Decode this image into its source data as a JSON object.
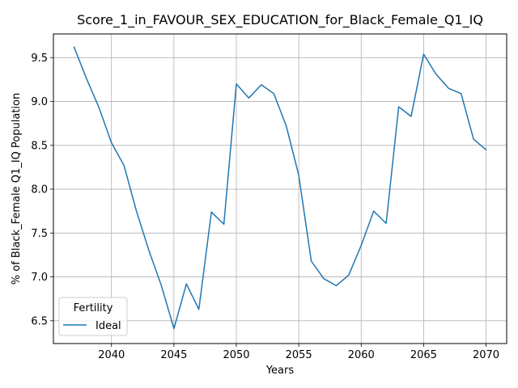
{
  "chart_data": {
    "type": "line",
    "title": "Score_1_in_FAVOUR_SEX_EDUCATION_for_Black_Female_Q1_IQ",
    "xlabel": "Years",
    "ylabel": "% of Black_Female Q1_IQ Population",
    "xlim": [
      2035.35,
      2071.65
    ],
    "ylim": [
      6.24,
      9.77
    ],
    "xticks": [
      2040,
      2045,
      2050,
      2055,
      2060,
      2065,
      2070
    ],
    "yticks": [
      6.5,
      7.0,
      7.5,
      8.0,
      8.5,
      9.0,
      9.5
    ],
    "xtick_labels": [
      "2040",
      "2045",
      "2050",
      "2055",
      "2060",
      "2065",
      "2070"
    ],
    "ytick_labels": [
      "6.5",
      "7.0",
      "7.5",
      "8.0",
      "8.5",
      "9.0",
      "9.5"
    ],
    "grid": true,
    "legend": {
      "title": "Fertility",
      "position": "lower-left"
    },
    "series": [
      {
        "name": "Ideal",
        "color": "#1f77b4",
        "x": [
          2037,
          2038,
          2039,
          2040,
          2041,
          2042,
          2043,
          2044,
          2045,
          2046,
          2047,
          2048,
          2049,
          2050,
          2051,
          2052,
          2053,
          2054,
          2055,
          2056,
          2057,
          2058,
          2059,
          2060,
          2061,
          2062,
          2063,
          2064,
          2065,
          2066,
          2067,
          2068,
          2069,
          2070
        ],
        "y": [
          9.62,
          9.26,
          8.93,
          8.53,
          8.27,
          7.75,
          7.3,
          6.9,
          6.41,
          6.92,
          6.63,
          7.74,
          7.6,
          9.2,
          9.04,
          9.19,
          9.09,
          8.72,
          8.16,
          7.18,
          6.98,
          6.9,
          7.02,
          7.36,
          7.75,
          7.61,
          8.94,
          8.83,
          9.54,
          9.31,
          9.15,
          9.09,
          8.57,
          8.45
        ]
      }
    ]
  }
}
